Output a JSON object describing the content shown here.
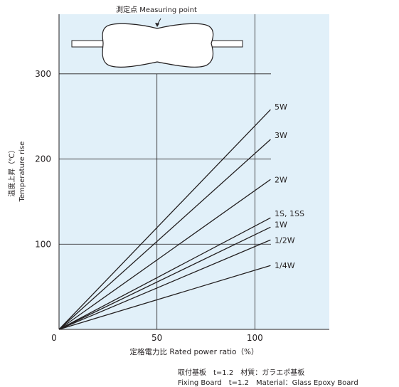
{
  "chart_data": {
    "type": "line",
    "title": "",
    "xlabel": "定格電力比 Rated power ratio（%）",
    "ylabel": "温度上昇（℃）",
    "ylabel_en": "Temperature rise",
    "xlim": [
      0,
      138
    ],
    "ylim": [
      0,
      370
    ],
    "x_ticks": [
      {
        "value": 0,
        "label": "0"
      },
      {
        "value": 50,
        "label": "50"
      },
      {
        "value": 100,
        "label": "100"
      }
    ],
    "y_ticks": [
      {
        "value": 100,
        "label": "100"
      },
      {
        "value": 200,
        "label": "200"
      },
      {
        "value": 300,
        "label": "300"
      }
    ],
    "grid": true,
    "series": [
      {
        "name": "5W",
        "x": [
          0,
          108
        ],
        "y": [
          0,
          258
        ]
      },
      {
        "name": "3W",
        "x": [
          0,
          108
        ],
        "y": [
          0,
          223
        ]
      },
      {
        "name": "2W",
        "x": [
          0,
          108
        ],
        "y": [
          0,
          176
        ]
      },
      {
        "name": "1S, 1SS",
        "x": [
          0,
          108
        ],
        "y": [
          0,
          131
        ]
      },
      {
        "name": "1W",
        "x": [
          0,
          108
        ],
        "y": [
          0,
          120
        ]
      },
      {
        "name": "1/2W",
        "x": [
          0,
          108
        ],
        "y": [
          0,
          105
        ]
      },
      {
        "name": "1/4W",
        "x": [
          0,
          108
        ],
        "y": [
          0,
          75
        ]
      }
    ],
    "colors": {
      "plot_background": "#e1f0f9",
      "line": "#231f20"
    }
  },
  "inset": {
    "label": "測定点 Measuring point"
  },
  "notes": {
    "line1": "取付基板　t=1.2　材質：ガラエポ基板",
    "line2": "Fixing Board　t=1.2　Material：Glass Epoxy Board"
  }
}
